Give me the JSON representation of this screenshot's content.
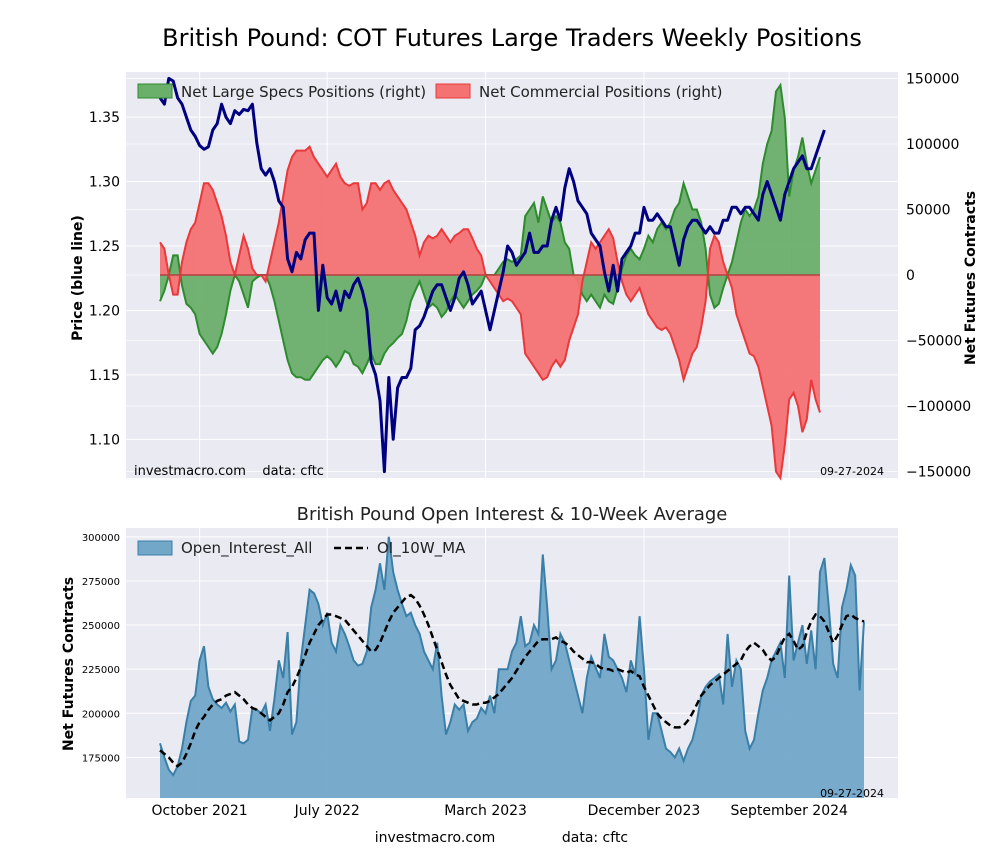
{
  "figure": {
    "title": "British Pound: COT Futures Large Traders Weekly Positions",
    "footer_site": "investmacro.com",
    "footer_source": "data: cftc"
  },
  "colors": {
    "panel_bg": "#eaeaf2",
    "grid": "#ffffff",
    "price_line": "#000080",
    "specs_fill": "#6aaf6a",
    "specs_line": "#2e8b2e",
    "comm_fill": "#f47272",
    "comm_line": "#e8393c",
    "oi_fill": "#72a7c8",
    "oi_line": "#3a7fa8",
    "ma_line": "#000000"
  },
  "chart_data": [
    {
      "type": "line",
      "title": "British Pound: COT Futures Large Traders Weekly Positions",
      "ylabel": "Price (blue line)",
      "y2label": "Net Futures Contracts",
      "ylim": [
        1.07,
        1.385
      ],
      "y2lim": [
        -155000,
        155000
      ],
      "yticks": [
        "1.10",
        "1.15",
        "1.20",
        "1.25",
        "1.30",
        "1.35"
      ],
      "y2ticks": [
        "−150000",
        "−100000",
        "−50000",
        "0",
        "50000",
        "100000",
        "150000"
      ],
      "xlim": [
        0,
        160
      ],
      "legend_position": "top-left",
      "watermark": "investmacro.com    data: cftc",
      "date_label": "09-27-2024",
      "grid": true,
      "series": [
        {
          "name": "Net Large Specs Positions (right)",
          "kind": "area",
          "axis": "right",
          "values": [
            -20000,
            -12000,
            0,
            15000,
            15000,
            -8000,
            -22000,
            -25000,
            -30000,
            -45000,
            -50000,
            -55000,
            -60000,
            -55000,
            -45000,
            -30000,
            -12000,
            0,
            -5000,
            -15000,
            -25000,
            -5000,
            -2000,
            0,
            0,
            -8000,
            -20000,
            -35000,
            -50000,
            -65000,
            -75000,
            -78000,
            -78000,
            -80000,
            -80000,
            -75000,
            -70000,
            -65000,
            -62000,
            -65000,
            -70000,
            -65000,
            -58000,
            -60000,
            -68000,
            -70000,
            -75000,
            -68000,
            -60000,
            -68000,
            -68000,
            -60000,
            -55000,
            -52000,
            -48000,
            -45000,
            -35000,
            -20000,
            -12000,
            -5000,
            -15000,
            -25000,
            -22000,
            -25000,
            -32000,
            -28000,
            -20000,
            -15000,
            -20000,
            -25000,
            -20000,
            -15000,
            -12000,
            -8000,
            0,
            0,
            0,
            5000,
            10000,
            12000,
            10000,
            12000,
            15000,
            45000,
            50000,
            55000,
            40000,
            60000,
            50000,
            40000,
            45000,
            40000,
            25000,
            20000,
            0,
            -5000,
            -15000,
            -20000,
            -15000,
            -20000,
            -25000,
            -15000,
            -20000,
            -22000,
            -10000,
            5000,
            15000,
            20000,
            15000,
            12000,
            20000,
            30000,
            25000,
            35000,
            40000,
            35000,
            40000,
            50000,
            55000,
            70000,
            60000,
            50000,
            50000,
            40000,
            20000,
            -15000,
            -25000,
            -22000,
            -10000,
            0,
            10000,
            25000,
            40000,
            50000,
            45000,
            50000,
            60000,
            85000,
            100000,
            110000,
            140000,
            145000,
            120000,
            60000,
            80000,
            90000,
            105000,
            85000,
            70000,
            80000,
            90000
          ],
          "description": "Values in net contracts; area filled to zero"
        },
        {
          "name": "Net Commercial Positions (right)",
          "kind": "area",
          "axis": "right",
          "values": [
            25000,
            20000,
            0,
            -15000,
            -15000,
            10000,
            25000,
            35000,
            40000,
            55000,
            70000,
            70000,
            65000,
            55000,
            45000,
            30000,
            10000,
            0,
            15000,
            30000,
            20000,
            5000,
            0,
            0,
            -5000,
            10000,
            25000,
            40000,
            60000,
            80000,
            90000,
            95000,
            95000,
            95000,
            98000,
            90000,
            85000,
            80000,
            75000,
            80000,
            85000,
            75000,
            70000,
            68000,
            70000,
            70000,
            50000,
            55000,
            70000,
            70000,
            65000,
            70000,
            72000,
            65000,
            60000,
            55000,
            50000,
            40000,
            30000,
            15000,
            25000,
            30000,
            28000,
            30000,
            35000,
            30000,
            25000,
            30000,
            32000,
            35000,
            35000,
            28000,
            20000,
            15000,
            0,
            -5000,
            -10000,
            -15000,
            -20000,
            -18000,
            -20000,
            -25000,
            -30000,
            -60000,
            -65000,
            -70000,
            -75000,
            -80000,
            -78000,
            -70000,
            -65000,
            -70000,
            -65000,
            -50000,
            -40000,
            -30000,
            -5000,
            10000,
            25000,
            20000,
            25000,
            30000,
            35000,
            28000,
            10000,
            -5000,
            -15000,
            -20000,
            -15000,
            -10000,
            -20000,
            -30000,
            -35000,
            -40000,
            -42000,
            -40000,
            -45000,
            -55000,
            -65000,
            -80000,
            -70000,
            -60000,
            -55000,
            -40000,
            -20000,
            20000,
            30000,
            25000,
            10000,
            0,
            -10000,
            -30000,
            -40000,
            -50000,
            -60000,
            -62000,
            -70000,
            -85000,
            -100000,
            -115000,
            -150000,
            -155000,
            -130000,
            -95000,
            -90000,
            -100000,
            -120000,
            -110000,
            -80000,
            -95000,
            -105000
          ]
        },
        {
          "name": "Price",
          "kind": "line",
          "axis": "left",
          "values": [
            1.365,
            1.36,
            1.38,
            1.378,
            1.365,
            1.36,
            1.35,
            1.34,
            1.335,
            1.328,
            1.325,
            1.327,
            1.34,
            1.345,
            1.36,
            1.35,
            1.345,
            1.355,
            1.352,
            1.356,
            1.355,
            1.36,
            1.33,
            1.31,
            1.305,
            1.31,
            1.3,
            1.285,
            1.28,
            1.24,
            1.23,
            1.245,
            1.24,
            1.255,
            1.26,
            1.26,
            1.2,
            1.235,
            1.21,
            1.205,
            1.215,
            1.2,
            1.215,
            1.21,
            1.22,
            1.225,
            1.215,
            1.2,
            1.16,
            1.15,
            1.13,
            1.075,
            1.148,
            1.1,
            1.14,
            1.148,
            1.148,
            1.155,
            1.185,
            1.188,
            1.195,
            1.205,
            1.215,
            1.22,
            1.22,
            1.21,
            1.2,
            1.21,
            1.225,
            1.23,
            1.22,
            1.205,
            1.21,
            1.215,
            1.2,
            1.185,
            1.2,
            1.215,
            1.23,
            1.25,
            1.245,
            1.235,
            1.24,
            1.245,
            1.26,
            1.245,
            1.245,
            1.25,
            1.25,
            1.27,
            1.28,
            1.27,
            1.295,
            1.31,
            1.3,
            1.285,
            1.28,
            1.275,
            1.26,
            1.255,
            1.25,
            1.23,
            1.215,
            1.235,
            1.215,
            1.24,
            1.245,
            1.25,
            1.26,
            1.26,
            1.28,
            1.27,
            1.27,
            1.275,
            1.27,
            1.265,
            1.265,
            1.25,
            1.235,
            1.255,
            1.265,
            1.27,
            1.27,
            1.265,
            1.26,
            1.265,
            1.26,
            1.26,
            1.27,
            1.27,
            1.28,
            1.28,
            1.275,
            1.28,
            1.28,
            1.275,
            1.27,
            1.29,
            1.3,
            1.29,
            1.28,
            1.27,
            1.29,
            1.3,
            1.31,
            1.315,
            1.32,
            1.31,
            1.31,
            1.32,
            1.33,
            1.34
          ]
        }
      ]
    },
    {
      "type": "area",
      "title": "British Pound Open Interest & 10-Week Average",
      "ylabel": "Net Futures Contracts",
      "ylim": [
        152000,
        305000
      ],
      "yticks": [
        "175000",
        "200000",
        "225000",
        "250000",
        "275000",
        "300000"
      ],
      "xlim": [
        0,
        160
      ],
      "xtick_labels": [
        "October 2021",
        "July 2022",
        "March 2023",
        "December 2023",
        "September 2024"
      ],
      "xtick_positions": [
        9,
        38,
        74,
        110,
        143
      ],
      "legend_position": "top-left",
      "date_label": "09-27-2024",
      "grid": true,
      "series": [
        {
          "name": "Open_Interest_All",
          "kind": "area",
          "values": [
            183000,
            175000,
            168000,
            165000,
            170000,
            180000,
            195000,
            207000,
            210000,
            230000,
            238000,
            215000,
            208000,
            205000,
            203000,
            206000,
            201000,
            205000,
            184000,
            183000,
            185000,
            203000,
            202000,
            200000,
            205000,
            190000,
            208000,
            230000,
            220000,
            246000,
            188000,
            195000,
            230000,
            250000,
            270000,
            268000,
            262000,
            250000,
            257000,
            240000,
            235000,
            250000,
            245000,
            238000,
            230000,
            227000,
            228000,
            235000,
            260000,
            270000,
            285000,
            270000,
            300000,
            280000,
            270000,
            262000,
            255000,
            257000,
            250000,
            245000,
            235000,
            230000,
            225000,
            240000,
            210000,
            188000,
            195000,
            205000,
            202000,
            205000,
            190000,
            195000,
            197000,
            203000,
            200000,
            210000,
            200000,
            225000,
            225000,
            225000,
            235000,
            240000,
            255000,
            238000,
            240000,
            250000,
            245000,
            290000,
            260000,
            225000,
            230000,
            245000,
            240000,
            230000,
            220000,
            210000,
            200000,
            220000,
            232000,
            226000,
            220000,
            245000,
            232000,
            230000,
            225000,
            220000,
            212000,
            230000,
            222000,
            255000,
            225000,
            185000,
            200000,
            200000,
            190000,
            180000,
            178000,
            175000,
            180000,
            173000,
            180000,
            185000,
            195000,
            210000,
            215000,
            218000,
            220000,
            222000,
            205000,
            245000,
            215000,
            230000,
            225000,
            190000,
            180000,
            185000,
            200000,
            213000,
            220000,
            230000,
            235000,
            240000,
            220000,
            278000,
            230000,
            240000,
            250000,
            228000,
            247000,
            225000,
            280000,
            288000,
            260000,
            228000,
            220000,
            260000,
            270000,
            284000,
            278000,
            213000,
            252000
          ]
        },
        {
          "name": "OI_10W_MA",
          "kind": "line",
          "values": [
            179000,
            177000,
            175000,
            172000,
            170000,
            172000,
            177000,
            183000,
            190000,
            195000,
            198000,
            202000,
            205000,
            207000,
            208000,
            210000,
            211000,
            212000,
            210000,
            208000,
            205000,
            203000,
            202000,
            200000,
            198000,
            196000,
            198000,
            200000,
            205000,
            212000,
            215000,
            220000,
            226000,
            233000,
            240000,
            245000,
            250000,
            253000,
            256000,
            256000,
            255000,
            254000,
            253000,
            250000,
            247000,
            244000,
            241000,
            238000,
            235000,
            236000,
            240000,
            246000,
            252000,
            257000,
            260000,
            263000,
            266000,
            267000,
            265000,
            261000,
            256000,
            250000,
            243000,
            236000,
            229000,
            222000,
            216000,
            212000,
            208000,
            207000,
            206000,
            205000,
            205000,
            206000,
            206000,
            207000,
            209000,
            211000,
            214000,
            217000,
            220000,
            224000,
            228000,
            232000,
            235000,
            238000,
            241000,
            242000,
            242000,
            242000,
            243000,
            241000,
            240000,
            238000,
            235000,
            233000,
            231000,
            229000,
            229000,
            228000,
            226000,
            225000,
            225000,
            224000,
            225000,
            224000,
            223000,
            224000,
            222000,
            221000,
            215000,
            210000,
            205000,
            200000,
            197000,
            195000,
            193000,
            192000,
            192000,
            193000,
            196000,
            200000,
            205000,
            210000,
            213000,
            216000,
            218000,
            220000,
            222000,
            224000,
            226000,
            228000,
            230000,
            235000,
            238000,
            240000,
            238000,
            236000,
            232000,
            230000,
            232000,
            238000,
            243000,
            245000,
            241000,
            236000,
            238000,
            246000,
            252000,
            256000,
            255000,
            252000,
            246000,
            240000,
            244000,
            250000,
            255000,
            256000,
            254000,
            253000,
            252000
          ]
        }
      ]
    }
  ]
}
